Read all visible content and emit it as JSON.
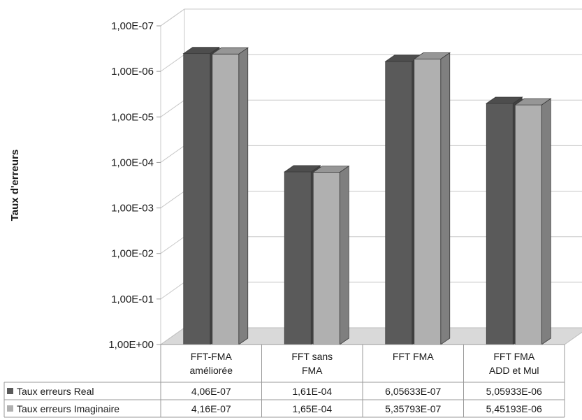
{
  "chart_data": {
    "type": "bar",
    "ylabel": "Taux d'erreurs",
    "yscale": "log-reversed",
    "y_ticks": [
      "1,00E-07",
      "1,00E-06",
      "1,00E-05",
      "1,00E-04",
      "1,00E-03",
      "1,00E-02",
      "1,00E-01",
      "1,00E+00"
    ],
    "ylim": [
      1,
      1e-07
    ],
    "categories": [
      [
        "FFT-FMA",
        "améliorée"
      ],
      [
        "FFT sans",
        "FMA"
      ],
      [
        "FFT FMA"
      ],
      [
        "FFT FMA",
        "ADD et Mul"
      ]
    ],
    "series": [
      {
        "name": "Taux erreurs Real",
        "color": "#5a5a5a",
        "values": [
          4.06e-07,
          0.000161,
          6.05633e-07,
          5.05933e-06
        ],
        "labels": [
          "4,06E-07",
          "1,61E-04",
          "6,05633E-07",
          "5,05933E-06"
        ]
      },
      {
        "name": "Taux erreurs Imaginaire",
        "color": "#b0b0b0",
        "values": [
          4.16e-07,
          0.000165,
          5.35793e-07,
          5.45193e-06
        ],
        "labels": [
          "4,16E-07",
          "1,65E-04",
          "5,35793E-07",
          "5,45193E-06"
        ]
      }
    ],
    "data_table": true,
    "grid": true
  }
}
